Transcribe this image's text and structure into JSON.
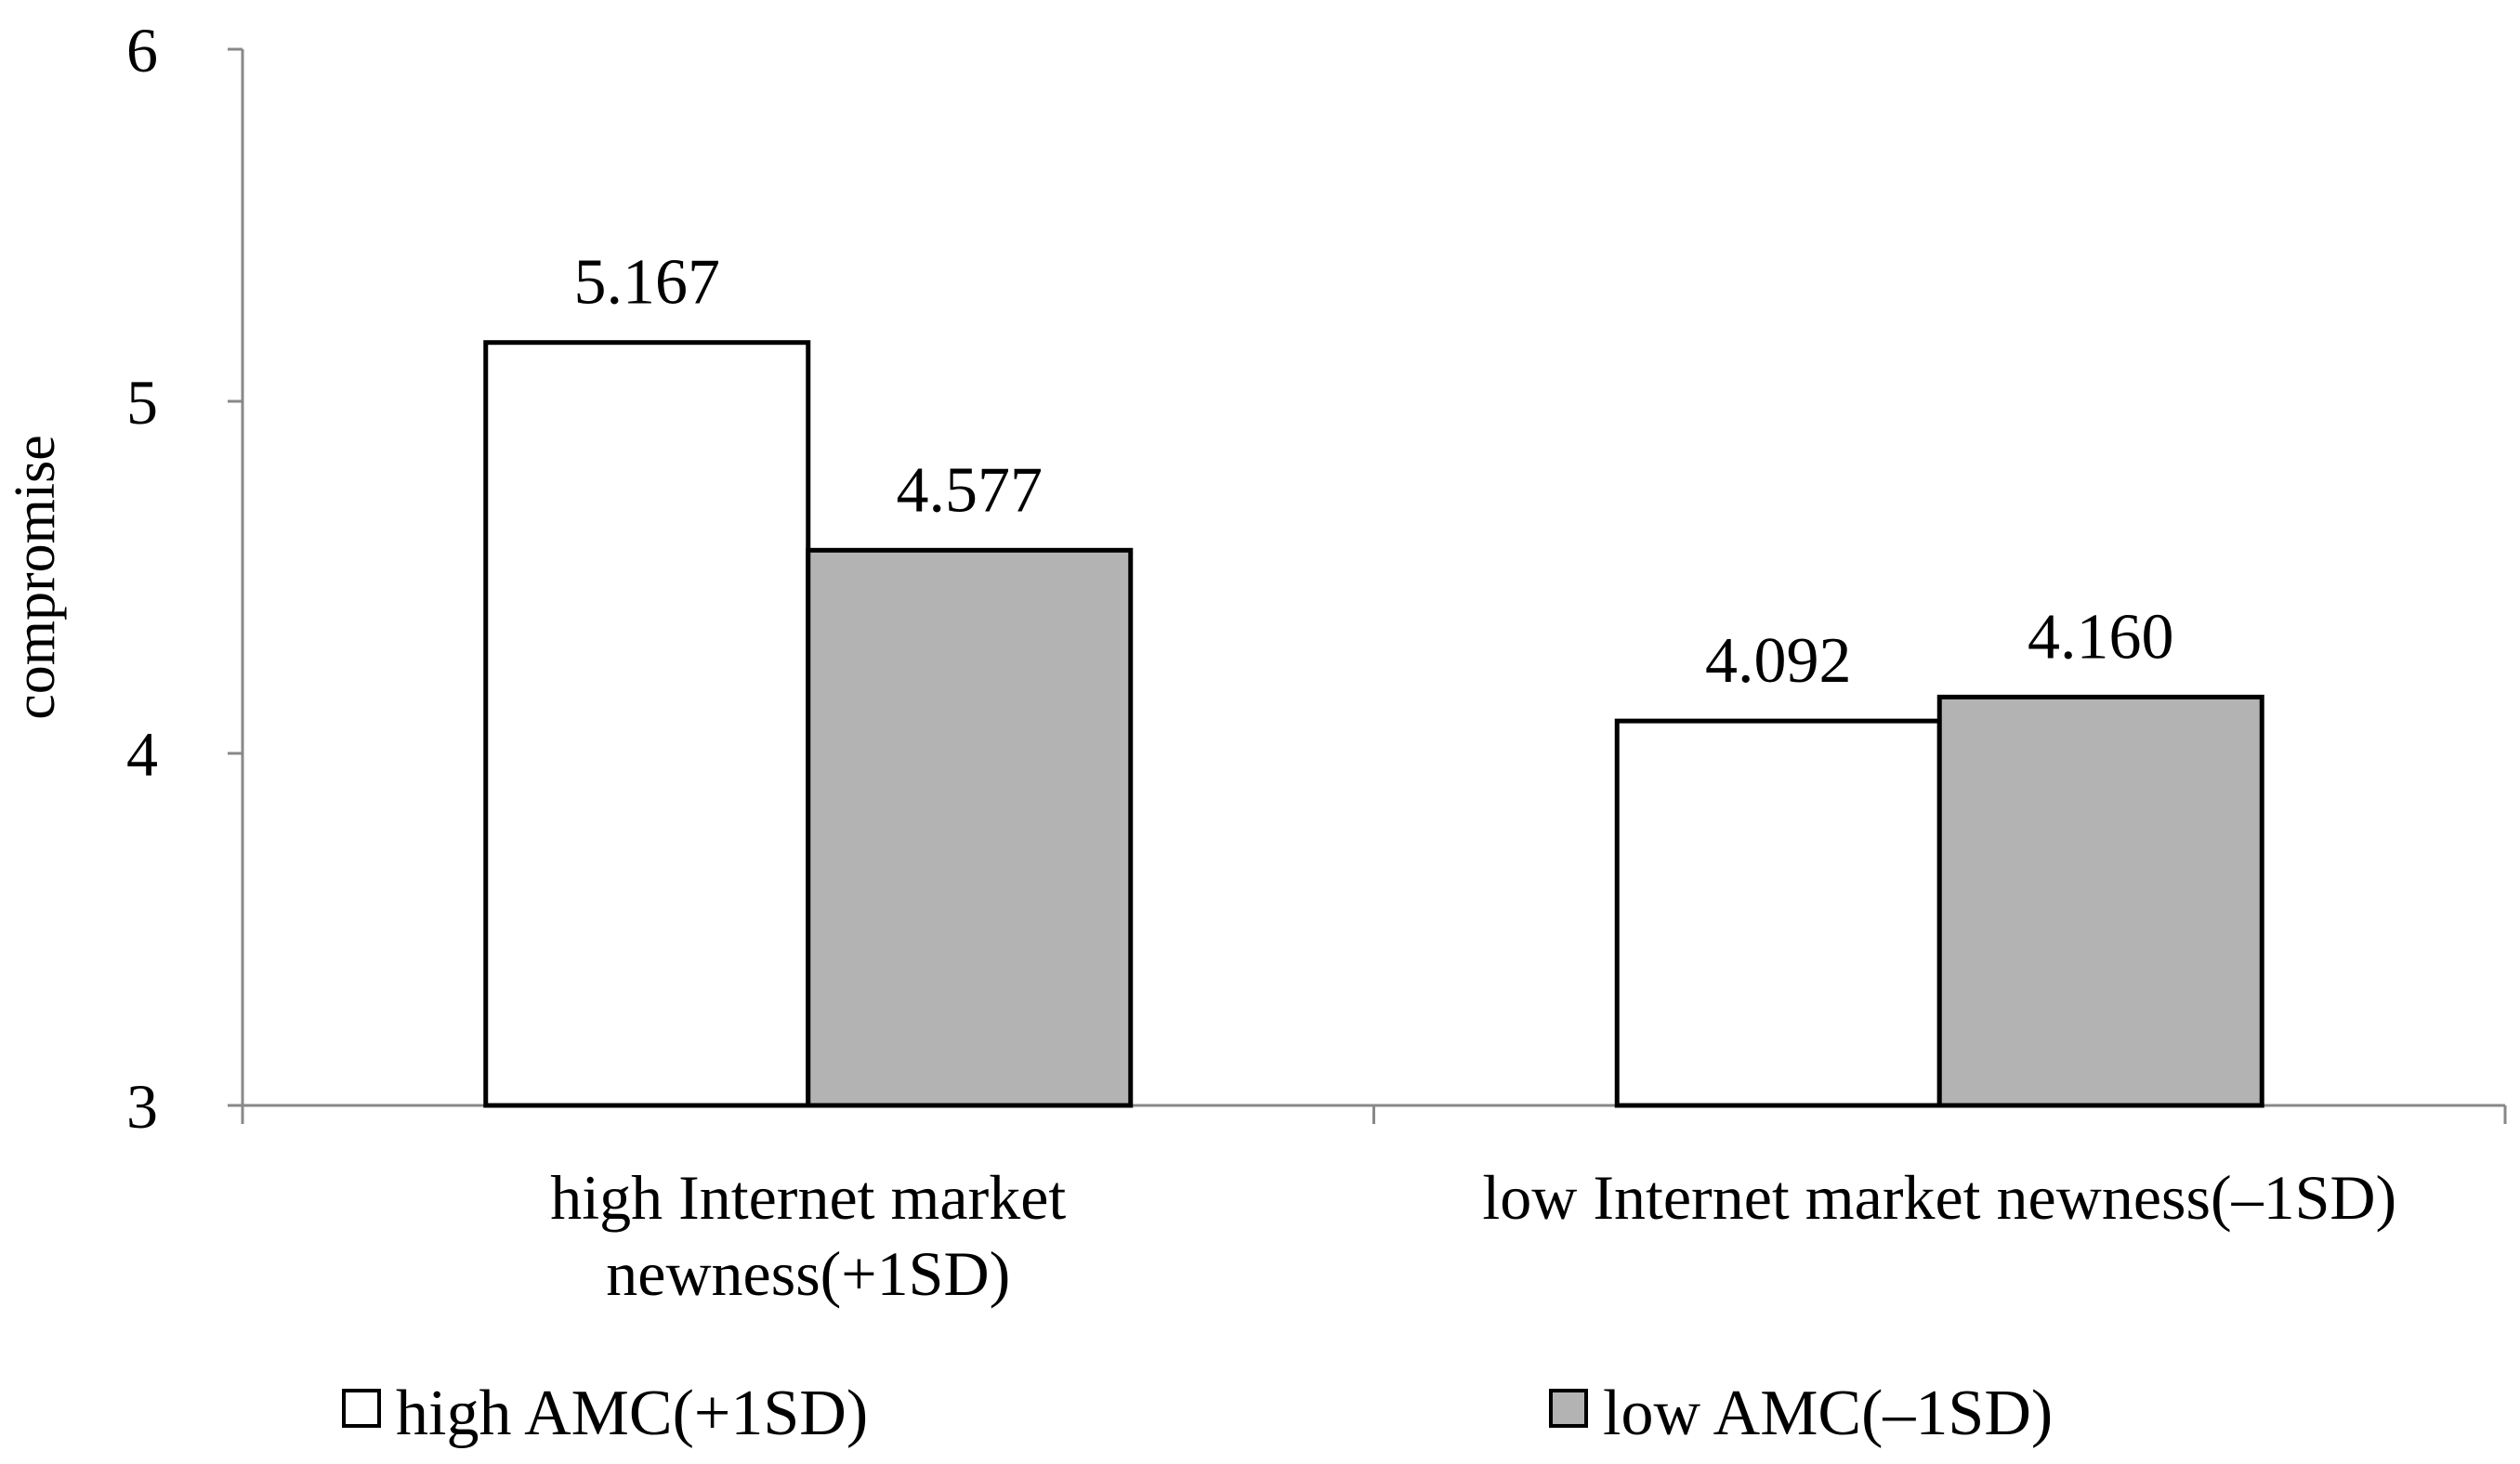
{
  "chart_data": {
    "type": "bar",
    "ylabel": "compromise",
    "xlabel": "",
    "ylim": [
      3,
      6
    ],
    "yticks": [
      "3",
      "4",
      "5",
      "6"
    ],
    "grid": false,
    "legend_position": "bottom",
    "categories": [
      [
        "high Internet market",
        "newness(+1SD)"
      ],
      [
        "low Internet market newness(–1SD)"
      ]
    ],
    "series": [
      {
        "name": "high AMC(+1SD)",
        "color": "#ffffff",
        "values": [
          5.167,
          4.092
        ],
        "labels": [
          "5.167",
          "4.092"
        ]
      },
      {
        "name": "low AMC(–1SD)",
        "color": "#b3b3b3",
        "values": [
          4.577,
          4.16
        ],
        "labels": [
          "4.577",
          "4.160"
        ]
      }
    ]
  }
}
